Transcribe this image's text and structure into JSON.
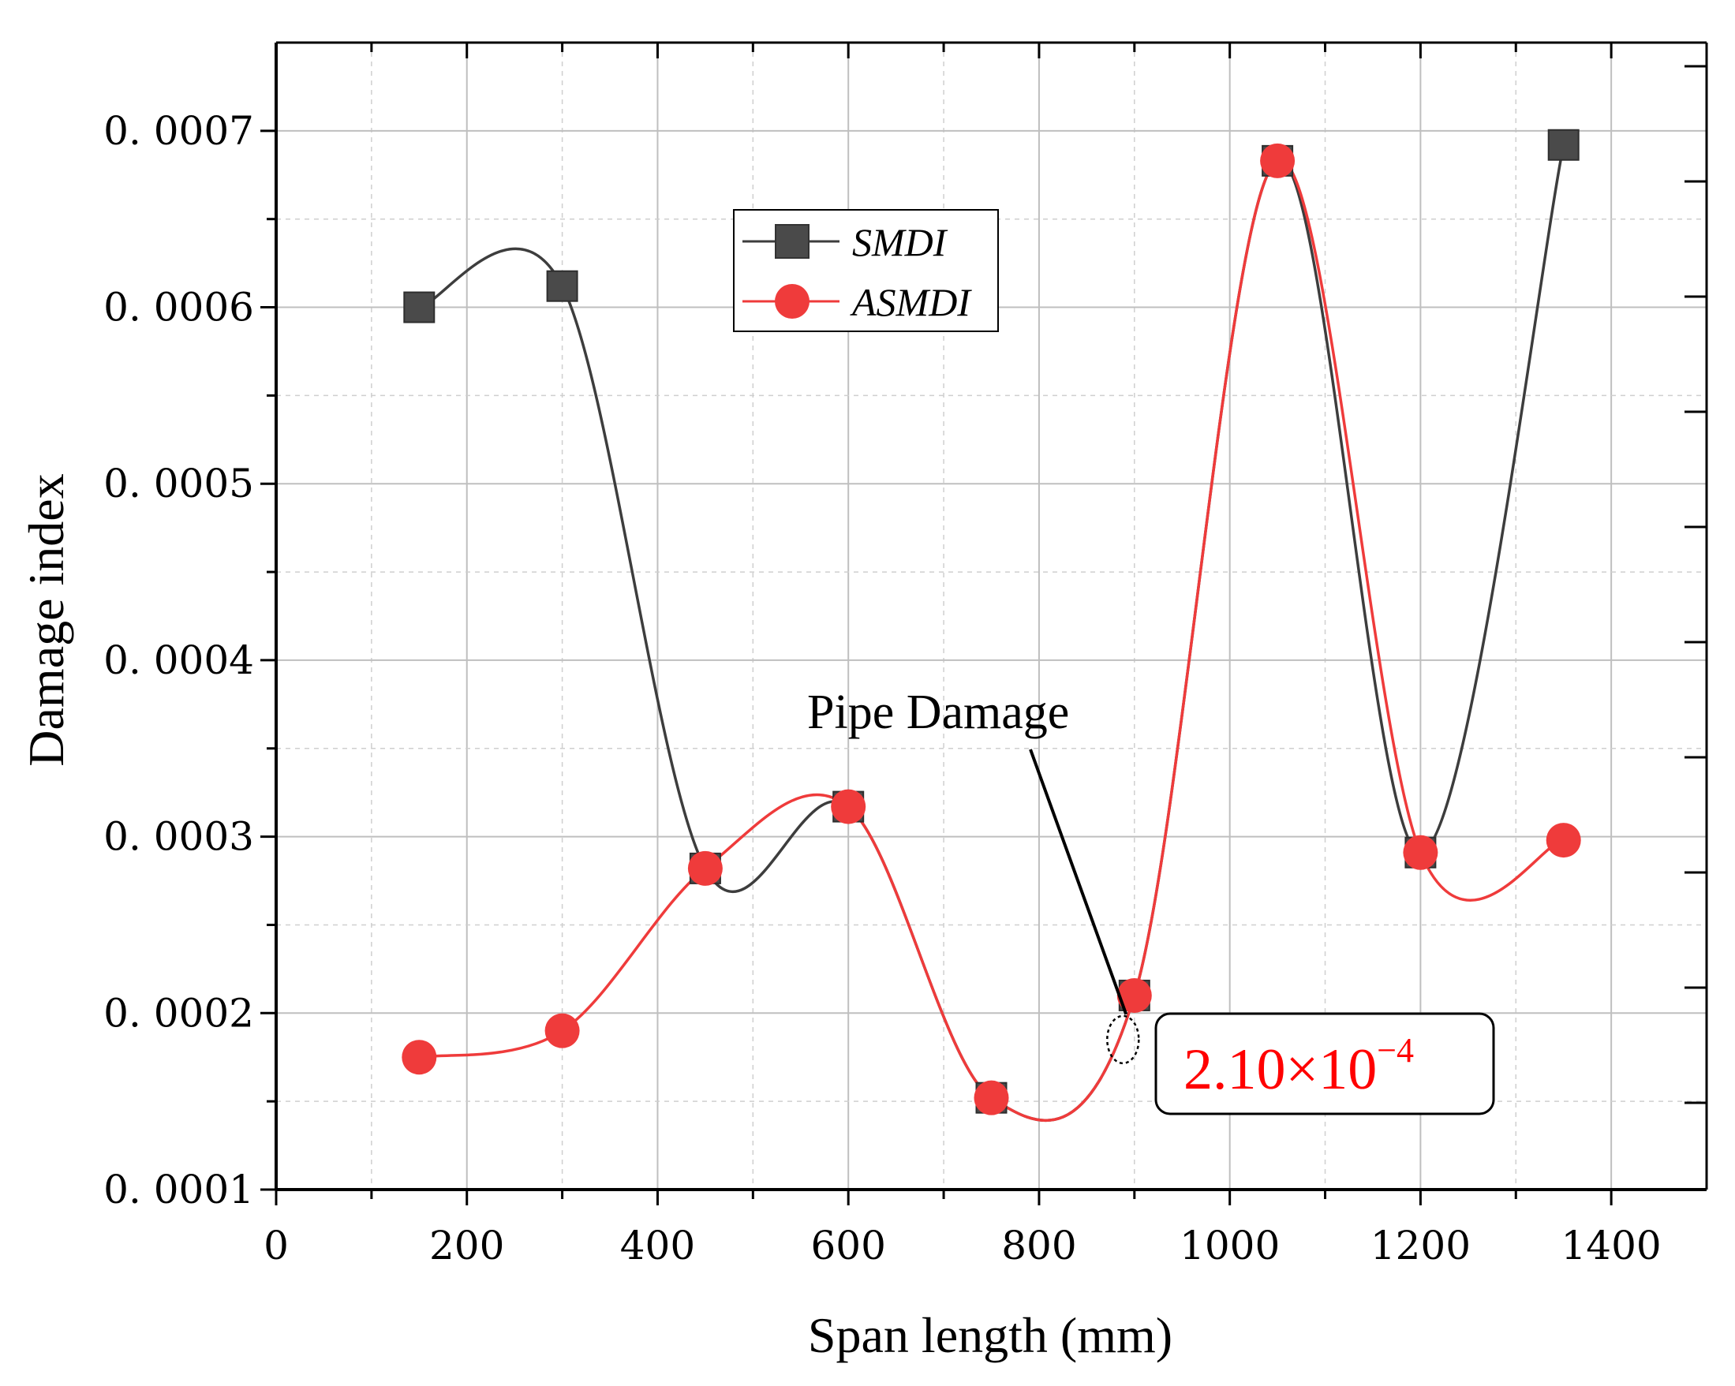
{
  "chart_data": {
    "type": "line",
    "xlabel": "Span length (mm)",
    "ylabel": "Damage index",
    "xlim": [
      0,
      1500
    ],
    "ylim": [
      0.0001,
      0.00075
    ],
    "x_ticks": [
      0,
      200,
      400,
      600,
      800,
      1000,
      1200,
      1400
    ],
    "x_tick_labels": [
      "0",
      "200",
      "400",
      "600",
      "800",
      "1000",
      "1200",
      "1400"
    ],
    "y_ticks": [
      0.0001,
      0.0002,
      0.0003,
      0.0004,
      0.0005,
      0.0006,
      0.0007
    ],
    "y_tick_labels": [
      "0. 0001",
      "0. 0002",
      "0. 0003",
      "0. 0004",
      "0. 0005",
      "0. 0006",
      "0. 0007"
    ],
    "grid": true,
    "legend_position": "top-center",
    "series": [
      {
        "name": "SMDI",
        "marker": "square",
        "color": "#3d3d3d",
        "x": [
          150,
          300,
          450,
          600,
          750,
          900,
          1050,
          1200,
          1350
        ],
        "values": [
          0.0006,
          0.000612,
          0.000282,
          0.000317,
          0.000152,
          0.00021,
          0.000683,
          0.000291,
          0.000692
        ]
      },
      {
        "name": "ASMDI",
        "marker": "circle",
        "color": "#ef3b3b",
        "x": [
          150,
          300,
          450,
          600,
          750,
          900,
          1050,
          1200,
          1350
        ],
        "values": [
          0.000175,
          0.00019,
          0.000282,
          0.000317,
          0.000152,
          0.00021,
          0.000683,
          0.000291,
          0.000298
        ]
      }
    ],
    "annotation": {
      "label": "Pipe Damage",
      "value_base": "2.10×10",
      "value_exp": "−4",
      "value_color": "#ff0000",
      "target_x": 888,
      "target_y": 0.000185
    }
  }
}
